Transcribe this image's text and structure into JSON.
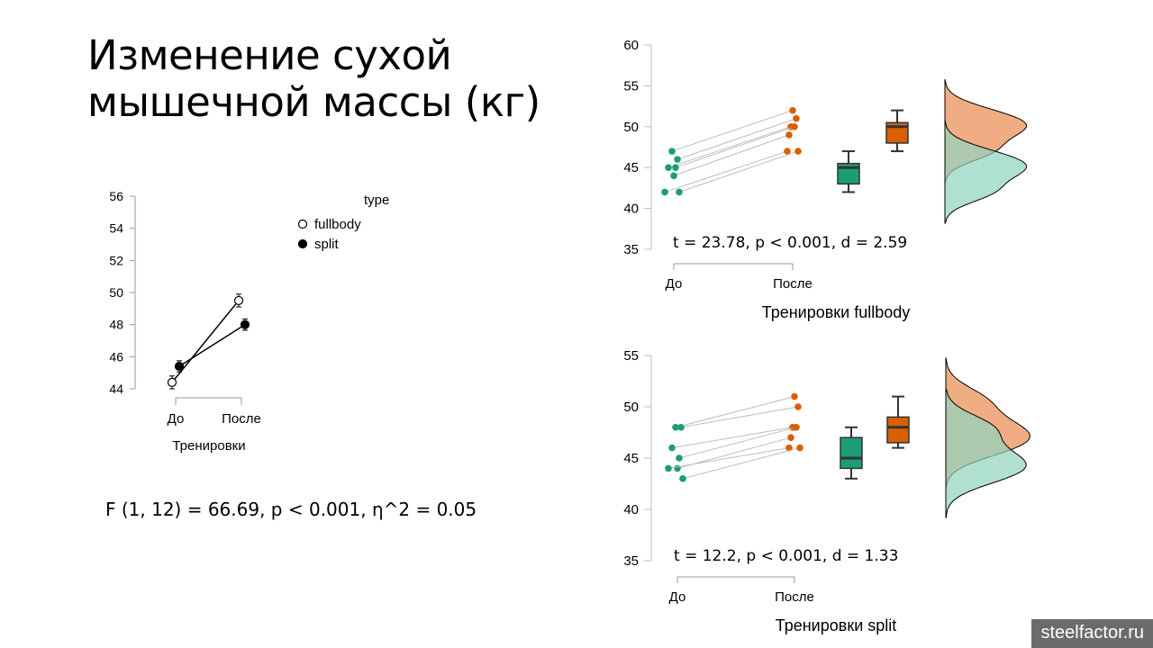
{
  "title_lines": [
    "Изменение сухой",
    "мышечной массы (кг)"
  ],
  "anova_text": "F (1, 12) = 66.69, p < 0.001, η^2 = 0.05",
  "watermark": "steelfactor.ru",
  "colors": {
    "before": "#1b9e77",
    "after": "#d95f02",
    "before_fill": "#8fd3bf",
    "after_fill": "#efa97c"
  },
  "chart_data": [
    {
      "type": "line",
      "xlabel": "Тренировки",
      "categories": [
        "До",
        "После"
      ],
      "ylim": [
        44,
        56
      ],
      "yticks": [
        44,
        46,
        48,
        50,
        52,
        54,
        56
      ],
      "legend": {
        "title": "type",
        "position": "top-right"
      },
      "series": [
        {
          "name": "fullbody",
          "marker": "open",
          "values": [
            44.4,
            49.5
          ],
          "errors": [
            0.4,
            0.4
          ]
        },
        {
          "name": "split",
          "marker": "filled",
          "values": [
            45.4,
            48.0
          ],
          "errors": [
            0.35,
            0.35
          ]
        }
      ]
    },
    {
      "type": "scatter",
      "xlabel": "Тренировки fullbody",
      "categories": [
        "До",
        "После"
      ],
      "ylim": [
        35,
        60
      ],
      "yticks": [
        35,
        40,
        45,
        50,
        55,
        60
      ],
      "annotation": "t = 23.78, p < 0.001, d = 2.59",
      "pairs": [
        [
          47,
          52
        ],
        [
          46,
          51
        ],
        [
          45,
          50
        ],
        [
          45,
          50
        ],
        [
          44,
          49
        ],
        [
          42,
          47
        ],
        [
          42,
          47
        ]
      ],
      "boxplots": [
        {
          "q1": 43,
          "median": 45,
          "q3": 45.5,
          "min": 42,
          "max": 47
        },
        {
          "q1": 48,
          "median": 50,
          "q3": 50.5,
          "min": 47,
          "max": 52
        }
      ]
    },
    {
      "type": "scatter",
      "xlabel": "Тренировки split",
      "categories": [
        "До",
        "После"
      ],
      "ylim": [
        35,
        55
      ],
      "yticks": [
        35,
        40,
        45,
        50,
        55
      ],
      "annotation": "t = 12.2, p < 0.001, d = 1.33",
      "pairs": [
        [
          48,
          51
        ],
        [
          48,
          50
        ],
        [
          46,
          48
        ],
        [
          45,
          48
        ],
        [
          44,
          47
        ],
        [
          44,
          46
        ],
        [
          43,
          46
        ]
      ],
      "boxplots": [
        {
          "q1": 44,
          "median": 45,
          "q3": 47,
          "min": 43,
          "max": 48
        },
        {
          "q1": 46.5,
          "median": 48,
          "q3": 49,
          "min": 46,
          "max": 51
        }
      ]
    }
  ]
}
